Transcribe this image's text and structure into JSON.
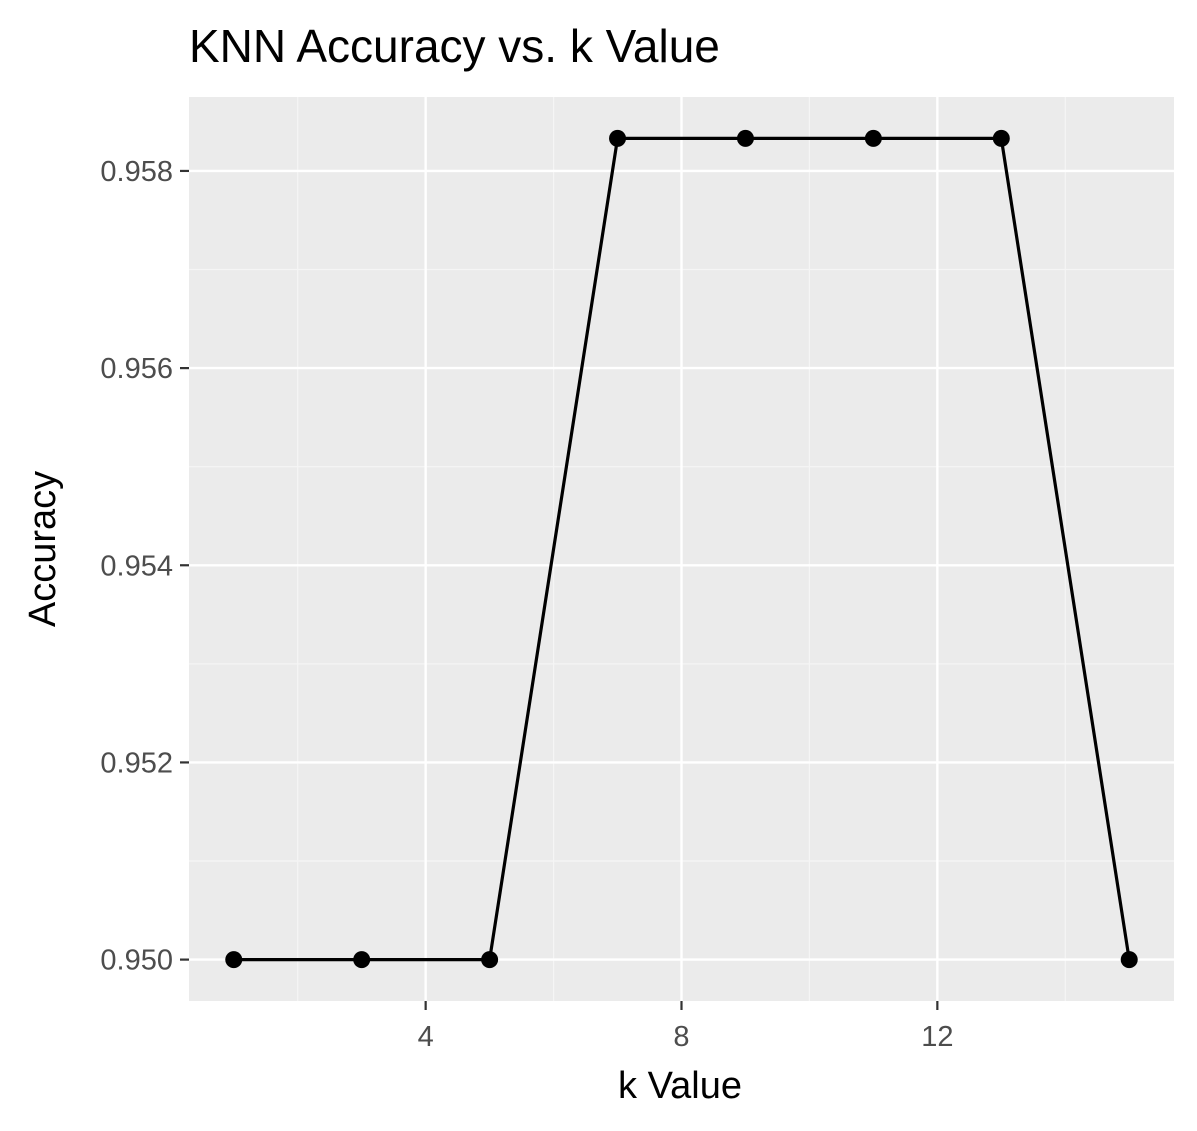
{
  "chart_data": {
    "type": "line",
    "title": "KNN Accuracy vs. k Value",
    "xlabel": "k Value",
    "ylabel": "Accuracy",
    "x": [
      1,
      3,
      5,
      7,
      9,
      11,
      13,
      15
    ],
    "series": [
      {
        "values": [
          0.95,
          0.95,
          0.95,
          0.95833,
          0.95833,
          0.95833,
          0.95833,
          0.95
        ]
      }
    ],
    "xlim": [
      0.3,
      15.7
    ],
    "ylim": [
      0.94958,
      0.95875
    ],
    "x_ticks": [
      4,
      8,
      12
    ],
    "x_tick_labels": [
      "4",
      "8",
      "12"
    ],
    "y_ticks": [
      0.95,
      0.952,
      0.954,
      0.956,
      0.958
    ],
    "y_tick_labels": [
      "0.950",
      "0.952",
      "0.954",
      "0.956",
      "0.958"
    ],
    "grid": true,
    "legend": "none",
    "colors": {
      "panel_background": "#ebebeb",
      "grid_major": "#ffffff",
      "grid_minor": "#f5f5f5",
      "line": "#000000",
      "point": "#000000",
      "tick_text": "#4d4d4d",
      "tick_mark": "#333333"
    }
  }
}
